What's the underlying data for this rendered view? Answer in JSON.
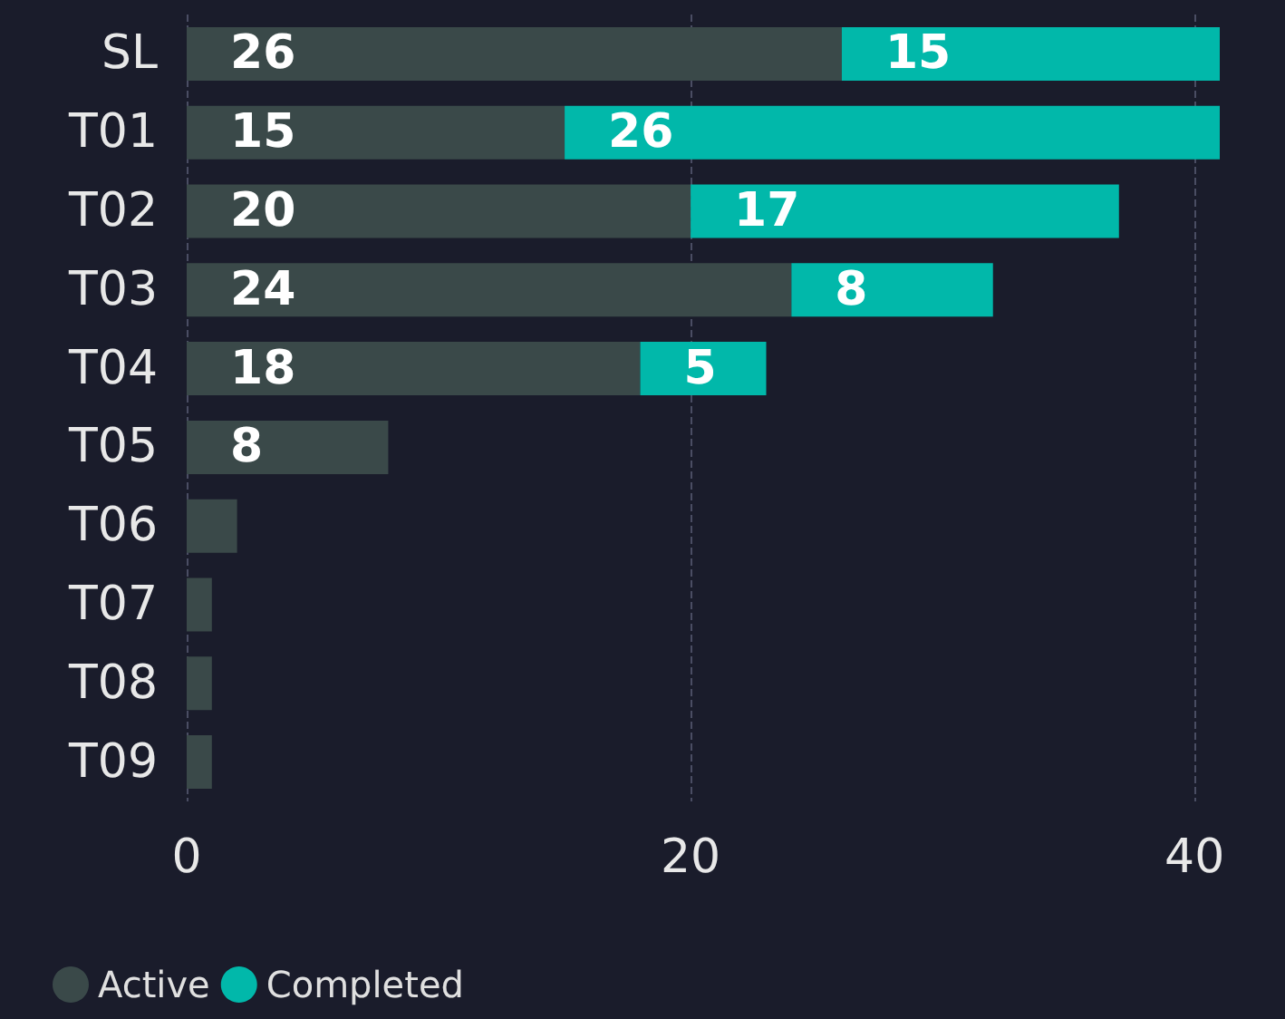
{
  "chart_data": {
    "type": "bar",
    "orientation": "horizontal",
    "stacked": true,
    "categories": [
      "SL",
      "T01",
      "T02",
      "T03",
      "T04",
      "T05",
      "T06",
      "T07",
      "T08",
      "T09"
    ],
    "series": [
      {
        "name": "Active",
        "color": "#3a4949",
        "values": [
          26,
          15,
          20,
          24,
          18,
          8,
          2,
          1,
          1,
          1
        ],
        "value_labels": [
          "26",
          "15",
          "20",
          "24",
          "18",
          "8",
          null,
          null,
          null,
          null
        ]
      },
      {
        "name": "Completed",
        "color": "#01b8aa",
        "values": [
          15,
          26,
          17,
          8,
          5,
          null,
          null,
          null,
          null,
          null
        ],
        "value_labels": [
          "15",
          "26",
          "17",
          "8",
          "5",
          null,
          null,
          null,
          null,
          null
        ]
      }
    ],
    "xlim": [
      0,
      41
    ],
    "xticks": [
      0,
      20,
      40
    ],
    "grid": "x",
    "legend": "bottom left"
  }
}
